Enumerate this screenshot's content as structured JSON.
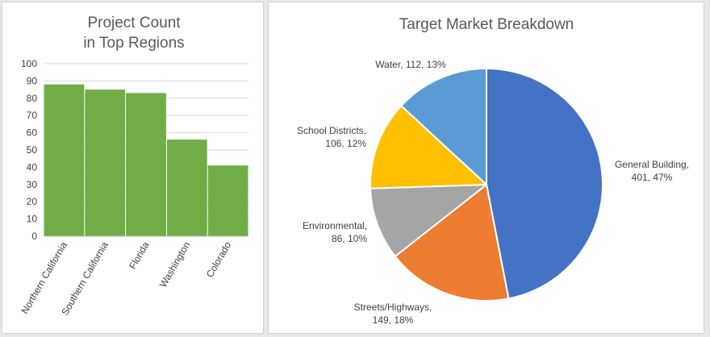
{
  "chart_data": [
    {
      "type": "bar",
      "title_lines": [
        "Project Count",
        "in Top Regions"
      ],
      "categories": [
        "Northern California",
        "Southern California",
        "Florida",
        "Washington",
        "Colorado"
      ],
      "values": [
        88,
        85,
        83,
        56,
        41
      ],
      "ylim": [
        0,
        100
      ],
      "yticks": [
        0,
        10,
        20,
        30,
        40,
        50,
        60,
        70,
        80,
        90,
        100
      ],
      "grid": true,
      "colors": {
        "bar": "#70ad47",
        "grid": "#d9d9d9",
        "axis": "#bfbfbf"
      }
    },
    {
      "type": "pie",
      "title": "Target Market Breakdown",
      "slices": [
        {
          "name": "General Building",
          "value": 401,
          "percent": "47%",
          "color": "#4472c4",
          "label_lines": [
            "General Building,",
            "401, 47%"
          ]
        },
        {
          "name": "Streets/Highways",
          "value": 149,
          "percent": "18%",
          "color": "#ed7d31",
          "label_lines": [
            "Streets/Highways,",
            "149, 18%"
          ]
        },
        {
          "name": "Environmental",
          "value": 86,
          "percent": "10%",
          "color": "#a5a5a5",
          "label_lines": [
            "Environmental,",
            "86, 10%"
          ]
        },
        {
          "name": "School Districts",
          "value": 106,
          "percent": "12%",
          "color": "#ffc000",
          "label_lines": [
            "School Districts,",
            "106, 12%"
          ]
        },
        {
          "name": "Water",
          "value": 112,
          "percent": "13%",
          "color": "#5b9bd5",
          "label_lines": [
            "Water, 112, 13%"
          ]
        }
      ]
    }
  ]
}
